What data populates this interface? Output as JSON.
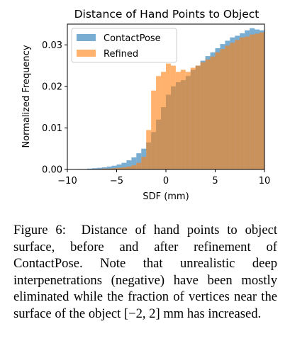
{
  "chart_data": {
    "type": "bar",
    "title": "Distance of Hand Points to Object",
    "xlabel": "SDF (mm)",
    "ylabel": "Normalized Frequency",
    "xlim": [
      -10,
      10
    ],
    "ylim": [
      0,
      0.035
    ],
    "xticks": [
      -10,
      -5,
      0,
      5,
      10
    ],
    "yticks": [
      0.0,
      0.01,
      0.02,
      0.03
    ],
    "xtick_labels": [
      "−10",
      "−5",
      "0",
      "5",
      "10"
    ],
    "ytick_labels": [
      "0.00",
      "0.01",
      "0.02",
      "0.03"
    ],
    "legend_position": "upper-left",
    "grid": false,
    "bin_width": 0.5,
    "bin_starts": [
      -10,
      -9.5,
      -9,
      -8.5,
      -8,
      -7.5,
      -7,
      -6.5,
      -6,
      -5.5,
      -5,
      -4.5,
      -4,
      -3.5,
      -3,
      -2.5,
      -2,
      -1.5,
      -1,
      -0.5,
      0,
      0.5,
      1,
      1.5,
      2,
      2.5,
      3,
      3.5,
      4,
      4.5,
      5,
      5.5,
      6,
      6.5,
      7,
      7.5,
      8,
      8.5,
      9,
      9.5
    ],
    "series": [
      {
        "name": "ContactPose",
        "color": "#1f77b4",
        "values": [
          0.0,
          0.0,
          0.0001,
          0.0001,
          0.0002,
          0.0003,
          0.0004,
          0.0005,
          0.0007,
          0.0009,
          0.0012,
          0.0016,
          0.0022,
          0.0029,
          0.0039,
          0.005,
          0.0065,
          0.009,
          0.012,
          0.015,
          0.018,
          0.02,
          0.021,
          0.0215,
          0.0225,
          0.024,
          0.025,
          0.0262,
          0.0273,
          0.0282,
          0.0292,
          0.0302,
          0.031,
          0.0318,
          0.0322,
          0.0328,
          0.0335,
          0.034,
          0.0337,
          0.0335
        ]
      },
      {
        "name": "Refined",
        "color": "#ff7f0e",
        "values": [
          0.0,
          0.0,
          0.0,
          0.0,
          0.0,
          0.0001,
          0.0001,
          0.0002,
          0.0002,
          0.0003,
          0.0004,
          0.0005,
          0.0007,
          0.001,
          0.0016,
          0.003,
          0.0095,
          0.019,
          0.0225,
          0.0235,
          0.0255,
          0.025,
          0.0235,
          0.024,
          0.0235,
          0.0245,
          0.025,
          0.0258,
          0.0265,
          0.0272,
          0.0282,
          0.029,
          0.0298,
          0.0305,
          0.0312,
          0.0318,
          0.032,
          0.0325,
          0.0327,
          0.033
        ]
      }
    ]
  },
  "caption": {
    "label": "Figure 6:",
    "text": "Distance of hand points to object surface, before and after refinement of ContactPose. Note that unrealistic deep interpenetrations (negative) have been mostly eliminated while the fraction of vertices near the surface of the object ",
    "math": "[−2, 2]",
    "tail": " mm has increased."
  }
}
